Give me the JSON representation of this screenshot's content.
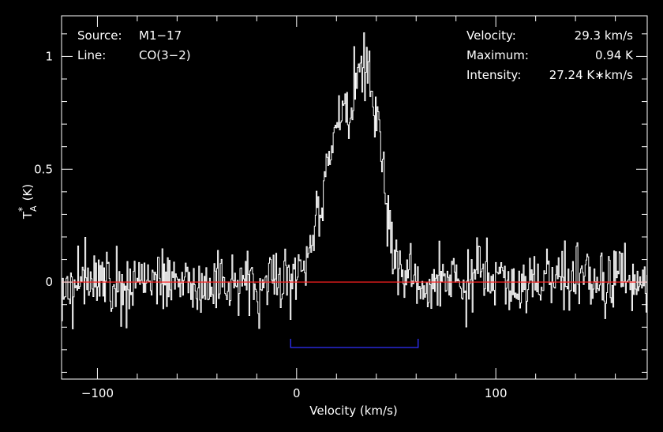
{
  "chart_data": {
    "type": "line",
    "xlabel": "Velocity (km/s)",
    "ylabel": "T*A (K)",
    "ylabel_parts": {
      "base": "T",
      "sup": "*",
      "sub": "A",
      "unit": "(K)"
    },
    "xlim": [
      -118,
      176
    ],
    "ylim": [
      -0.43,
      1.18
    ],
    "x_ticks": [
      -100,
      0,
      100
    ],
    "x_tick_labels": [
      "−100",
      "0",
      "100"
    ],
    "y_ticks": [
      0,
      0.5,
      1
    ],
    "y_tick_labels": [
      "0",
      "0.5",
      "1"
    ],
    "annotations_left": [
      {
        "label": "Source:",
        "value": "M1−17"
      },
      {
        "label": "Line:",
        "value": "CO(3−2)"
      }
    ],
    "annotations_right": [
      {
        "label": "Velocity:",
        "value": "29.3 km/s"
      },
      {
        "label": "Maximum:",
        "value": "0.94 K"
      },
      {
        "label": "Intensity:",
        "value": "27.24 K∗km/s"
      }
    ],
    "baseline": {
      "y": 0,
      "color": "#ff2020"
    },
    "integration_window": {
      "x": [
        -3,
        61
      ],
      "y": -0.29,
      "color": "#3030ff"
    },
    "series": [
      {
        "color": "#ffffff",
        "profile": {
          "noise_rms": 0.1,
          "step": 0.45
        },
        "components": [
          {
            "center": 21,
            "amplitude": 0.64,
            "sigma": 8.5
          },
          {
            "center": 36.5,
            "amplitude": 0.8,
            "sigma": 6.5
          }
        ]
      }
    ]
  }
}
